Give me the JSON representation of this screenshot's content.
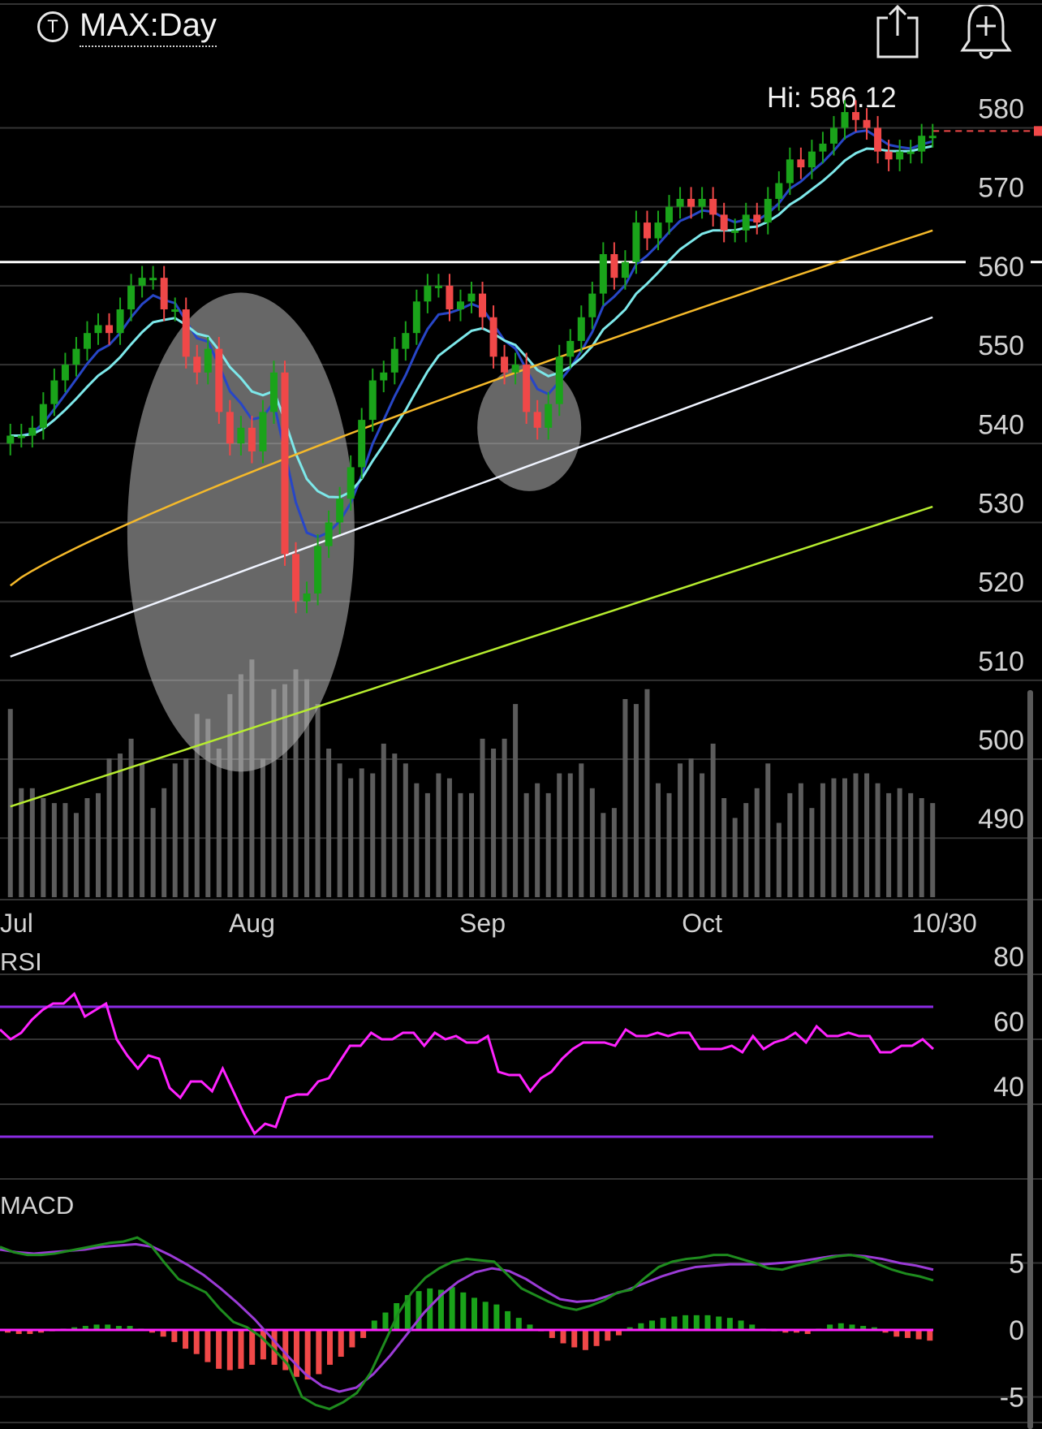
{
  "header": {
    "badge": "T",
    "symbol": "MAX:Day",
    "hi_text": "Hi: 586.12"
  },
  "icons": {
    "share": "share-icon",
    "alert": "add-alert-icon"
  },
  "colors": {
    "up": "#1aa31a",
    "down": "#f04848",
    "ema_fast": "#2746c7",
    "ema_mid": "#7de8ea",
    "sma50": "#f5b92a",
    "sma100": "#f0f4ff",
    "sma200": "#b6ec2f",
    "rsi": "#ff22ff",
    "rsi_band": "#8a2be2",
    "macd": "#1e8c1e",
    "signal": "#9b3bd6",
    "level": "#ffffff"
  },
  "chart_data": [
    {
      "type": "candlestick",
      "title": "MAX:Day",
      "price_ticks": [
        580,
        570,
        560,
        550,
        540,
        530,
        520,
        510,
        500,
        490
      ],
      "ylim": [
        482,
        589
      ],
      "x_ticks": [
        "Jul",
        "Aug",
        "Sep",
        "Oct",
        "10/30"
      ],
      "x_tick_bars": [
        0,
        22,
        43,
        63,
        83
      ],
      "hi": 586.12,
      "horizontal_level": 563,
      "last_price": 579.6,
      "candles_close": [
        541,
        541,
        542,
        545,
        548,
        550,
        552,
        554,
        555,
        554,
        557,
        560,
        561,
        561,
        557,
        557,
        551,
        549,
        552,
        544,
        540,
        542,
        539,
        544,
        549,
        526,
        520,
        521,
        527,
        530,
        533,
        537,
        543,
        548,
        549,
        552,
        554,
        558,
        560,
        560,
        557,
        558,
        559,
        556,
        551,
        549,
        550,
        544,
        542,
        545,
        551,
        553,
        556,
        559,
        564,
        561,
        563,
        568,
        566,
        568,
        570,
        571,
        570,
        571,
        569,
        567,
        567,
        569,
        568,
        571,
        573,
        576,
        575,
        577,
        578,
        580,
        582,
        581,
        580,
        577,
        576,
        577,
        577,
        579,
        579
      ],
      "volume": [
        38,
        22,
        22,
        20,
        19,
        19,
        17,
        20,
        21,
        28,
        29,
        32,
        27,
        18,
        22,
        27,
        28,
        37,
        36,
        30,
        41,
        45,
        48,
        28,
        42,
        43,
        46,
        44,
        39,
        30,
        27,
        24,
        26,
        25,
        31,
        29,
        27,
        23,
        21,
        25,
        24,
        21,
        21,
        32,
        30,
        32,
        39,
        21,
        23,
        21,
        25,
        25,
        27,
        22,
        17,
        18,
        40,
        39,
        42,
        23,
        21,
        27,
        28,
        25,
        31,
        20,
        16,
        19,
        22,
        27,
        15,
        21,
        23,
        18,
        23,
        24,
        24,
        25,
        25,
        23,
        21,
        22,
        21,
        20,
        19
      ],
      "sma_endpoints": {
        "ema_fast": 579,
        "ema_mid": 576,
        "sma50": 567,
        "sma100": 556,
        "sma200": 532
      },
      "annotations": [
        "ellipse late-July to mid-August",
        "ellipse early September"
      ]
    },
    {
      "type": "line",
      "title": "RSI",
      "ticks": [
        80,
        60,
        40
      ],
      "bands": [
        70,
        30
      ],
      "values": [
        63,
        60,
        62,
        66,
        69,
        71,
        71,
        74,
        67,
        69,
        71,
        60,
        55,
        51,
        55,
        54,
        45,
        42,
        47,
        47,
        44,
        51,
        44,
        37,
        31,
        34,
        33,
        42,
        43,
        43,
        47,
        48,
        53,
        58,
        58,
        62,
        60,
        60,
        62,
        62,
        58,
        62,
        60,
        61,
        59,
        59,
        61,
        50,
        49,
        49,
        44,
        48,
        50,
        54,
        57,
        59,
        59,
        59,
        58,
        63,
        61,
        61,
        62,
        61,
        62,
        62,
        57,
        57,
        57,
        58,
        56,
        61,
        57,
        59,
        60,
        62,
        59,
        64,
        61,
        61,
        62,
        61,
        61,
        56,
        56,
        58,
        58,
        60,
        57
      ]
    },
    {
      "type": "line",
      "title": "MACD",
      "ticks": [
        5,
        0,
        -5
      ],
      "macd": [
        6.2,
        5.8,
        5.6,
        5.6,
        5.7,
        5.9,
        6.1,
        6.3,
        6.5,
        6.6,
        6.9,
        6.3,
        5.0,
        3.8,
        3.3,
        2.8,
        1.6,
        0.6,
        0.2,
        -0.5,
        -1.5,
        -2.6,
        -5.0,
        -5.6,
        -5.9,
        -5.4,
        -4.7,
        -3.2,
        -1.0,
        1.2,
        2.8,
        3.9,
        4.6,
        5.1,
        5.3,
        5.2,
        5.1,
        4.1,
        3.1,
        2.6,
        2.1,
        1.7,
        1.5,
        1.8,
        2.2,
        2.8,
        3.0,
        3.9,
        4.7,
        5.1,
        5.3,
        5.4,
        5.6,
        5.6,
        5.3,
        5.0,
        4.6,
        4.5,
        4.8,
        5.0,
        5.3,
        5.5,
        5.6,
        5.4,
        4.9,
        4.5,
        4.2,
        4.0,
        3.7
      ],
      "signal": [
        6.0,
        5.8,
        5.7,
        5.8,
        5.9,
        6.0,
        6.2,
        6.3,
        6.4,
        6.2,
        5.6,
        4.9,
        4.1,
        3.1,
        2.0,
        0.8,
        -0.6,
        -2.0,
        -3.3,
        -4.2,
        -4.6,
        -4.3,
        -3.3,
        -1.9,
        -0.3,
        1.3,
        2.6,
        3.6,
        4.3,
        4.6,
        4.4,
        3.8,
        3.0,
        2.3,
        2.1,
        2.2,
        2.6,
        3.0,
        3.5,
        4.0,
        4.4,
        4.7,
        4.8,
        4.9,
        4.9,
        4.9,
        5.0,
        5.1,
        5.3,
        5.5,
        5.6,
        5.5,
        5.3,
        5.0,
        4.8,
        4.5
      ],
      "histogram": [
        -0.2,
        -0.3,
        -0.3,
        -0.2,
        -0.1,
        0.1,
        0.2,
        0.3,
        0.4,
        0.4,
        0.3,
        0.3,
        0.1,
        -0.2,
        -0.5,
        -0.9,
        -1.4,
        -1.8,
        -2.4,
        -2.9,
        -3.0,
        -2.9,
        -2.6,
        -2.2,
        -2.6,
        -3.0,
        -3.5,
        -3.7,
        -3.3,
        -2.6,
        -2.0,
        -1.3,
        -0.6,
        0.7,
        1.3,
        2.0,
        2.6,
        2.9,
        3.1,
        3.0,
        3.2,
        2.8,
        2.4,
        2.1,
        1.9,
        1.4,
        0.9,
        0.4,
        -0.1,
        -0.6,
        -1.0,
        -1.3,
        -1.5,
        -1.2,
        -0.8,
        -0.4,
        0.2,
        0.5,
        0.7,
        0.9,
        1.0,
        1.1,
        1.1,
        1.1,
        1.0,
        0.9,
        0.7,
        0.4,
        0.1,
        -0.1,
        -0.2,
        -0.2,
        -0.3,
        0.1,
        0.4,
        0.5,
        0.4,
        0.3,
        0.2,
        -0.2,
        -0.5,
        -0.6,
        -0.7,
        -0.8
      ]
    }
  ]
}
